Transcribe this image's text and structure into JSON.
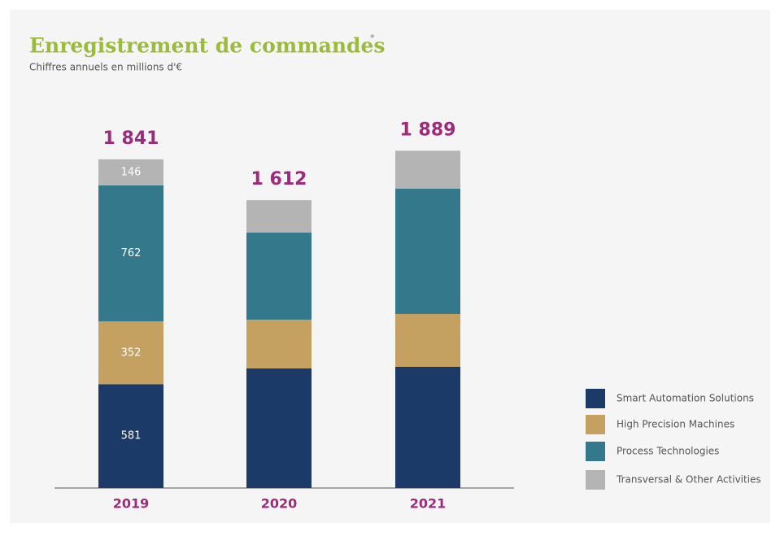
{
  "chart_data": {
    "type": "stacked_bar",
    "title": "Enregistrement de commandes",
    "title_note": "*",
    "subtitle": "Chiffres annuels en millions d'€",
    "categories": [
      "2019",
      "2020",
      "2021"
    ],
    "series": [
      {
        "name": "Smart Automation Solutions",
        "color": "#1b3a68",
        "values": [
          581,
          670,
          679
        ]
      },
      {
        "name": "High Precision Machines",
        "color": "#c4a160",
        "values": [
          352,
          273,
          296
        ]
      },
      {
        "name": "Process Technologies",
        "color": "#34798b",
        "values": [
          762,
          488,
          702
        ]
      },
      {
        "name": "Transversal & Other Activities",
        "color": "#b4b4b4",
        "values": [
          146,
          181,
          212
        ]
      }
    ],
    "show_segment_labels": [
      true,
      false,
      false
    ],
    "totals": [
      1841,
      1612,
      1889
    ],
    "total_labels": [
      "1 841",
      "1 612",
      "1 889"
    ],
    "ylim": [
      0,
      2100
    ],
    "legend": "right"
  }
}
